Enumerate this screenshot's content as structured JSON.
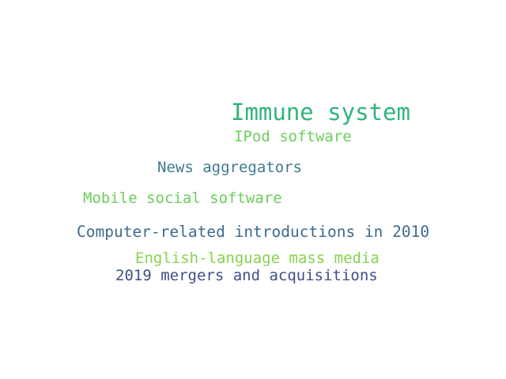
{
  "words": [
    {
      "text": "Immune system",
      "color": "#2fb47c"
    },
    {
      "text": "IPod software",
      "color": "#6ccd5a"
    },
    {
      "text": "News aggregators",
      "color": "#3e7a91"
    },
    {
      "text": "Mobile social software",
      "color": "#6ccd5a"
    },
    {
      "text": "Computer-related introductions in 2010",
      "color": "#3e6a8f"
    },
    {
      "text": "English-language mass media",
      "color": "#84d44b"
    },
    {
      "text": "2019 mergers and acquisitions",
      "color": "#3f4f88"
    }
  ]
}
